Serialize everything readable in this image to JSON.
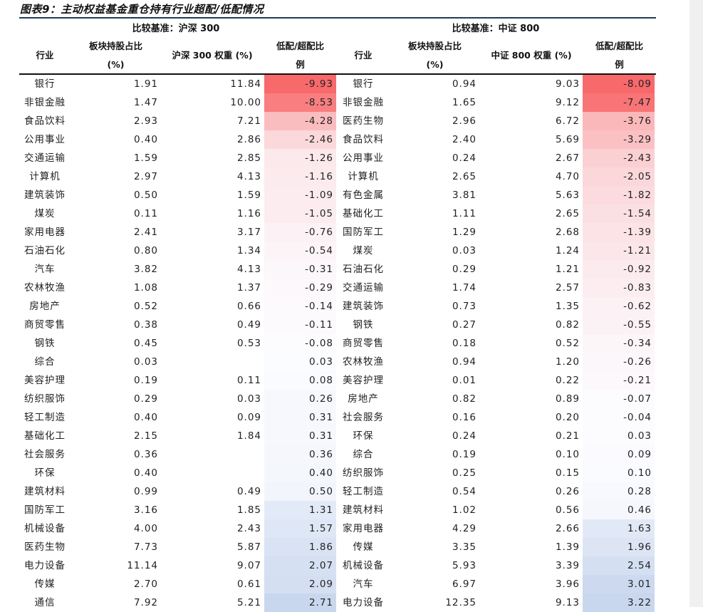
{
  "title": "图表9：主动权益基金重仓持有行业超配/低配情况",
  "left": {
    "benchmark": "比较基准：沪深 300",
    "headers": {
      "industry": "行业",
      "holding_l1": "板块持股占比",
      "holding_l2": "(%)",
      "weight": "沪深 300 权重 (%)",
      "diff_l1": "低配/超配比",
      "diff_l2": "例"
    },
    "rows": [
      [
        "银行",
        "1.91",
        "11.84",
        "-9.93"
      ],
      [
        "非银金融",
        "1.47",
        "10.00",
        "-8.53"
      ],
      [
        "食品饮料",
        "2.93",
        "7.21",
        "-4.28"
      ],
      [
        "公用事业",
        "0.40",
        "2.86",
        "-2.46"
      ],
      [
        "交通运输",
        "1.59",
        "2.85",
        "-1.26"
      ],
      [
        "计算机",
        "2.97",
        "4.13",
        "-1.16"
      ],
      [
        "建筑装饰",
        "0.50",
        "1.59",
        "-1.09"
      ],
      [
        "煤炭",
        "0.11",
        "1.16",
        "-1.05"
      ],
      [
        "家用电器",
        "2.41",
        "3.17",
        "-0.76"
      ],
      [
        "石油石化",
        "0.80",
        "1.34",
        "-0.54"
      ],
      [
        "汽车",
        "3.82",
        "4.13",
        "-0.31"
      ],
      [
        "农林牧渔",
        "1.08",
        "1.37",
        "-0.29"
      ],
      [
        "房地产",
        "0.52",
        "0.66",
        "-0.14"
      ],
      [
        "商贸零售",
        "0.38",
        "0.49",
        "-0.11"
      ],
      [
        "钢铁",
        "0.45",
        "0.53",
        "-0.08"
      ],
      [
        "综合",
        "0.03",
        "",
        "0.03"
      ],
      [
        "美容护理",
        "0.19",
        "0.11",
        "0.08"
      ],
      [
        "纺织服饰",
        "0.29",
        "0.03",
        "0.26"
      ],
      [
        "轻工制造",
        "0.40",
        "0.09",
        "0.31"
      ],
      [
        "基础化工",
        "2.15",
        "1.84",
        "0.31"
      ],
      [
        "社会服务",
        "0.36",
        "",
        "0.36"
      ],
      [
        "环保",
        "0.40",
        "",
        "0.40"
      ],
      [
        "建筑材料",
        "0.99",
        "0.49",
        "0.50"
      ],
      [
        "国防军工",
        "3.16",
        "1.85",
        "1.31"
      ],
      [
        "机械设备",
        "4.00",
        "2.43",
        "1.57"
      ],
      [
        "医药生物",
        "7.73",
        "5.87",
        "1.86"
      ],
      [
        "电力设备",
        "11.14",
        "9.07",
        "2.07"
      ],
      [
        "传媒",
        "2.70",
        "0.61",
        "2.09"
      ],
      [
        "通信",
        "7.92",
        "5.21",
        "2.71"
      ]
    ]
  },
  "right": {
    "benchmark": "比较基准：中证 800",
    "headers": {
      "industry": "行业",
      "holding_l1": "板块持股占比",
      "holding_l2": "(%)",
      "weight": "中证 800 权重 (%)",
      "diff_l1": "低配/超配比",
      "diff_l2": "例"
    },
    "rows": [
      [
        "银行",
        "0.94",
        "9.03",
        "-8.09"
      ],
      [
        "非银金融",
        "1.65",
        "9.12",
        "-7.47"
      ],
      [
        "医药生物",
        "2.96",
        "6.72",
        "-3.76"
      ],
      [
        "食品饮料",
        "2.40",
        "5.69",
        "-3.29"
      ],
      [
        "公用事业",
        "0.24",
        "2.67",
        "-2.43"
      ],
      [
        "计算机",
        "2.65",
        "4.70",
        "-2.05"
      ],
      [
        "有色金属",
        "3.81",
        "5.63",
        "-1.82"
      ],
      [
        "基础化工",
        "1.11",
        "2.65",
        "-1.54"
      ],
      [
        "国防军工",
        "1.29",
        "2.68",
        "-1.39"
      ],
      [
        "煤炭",
        "0.03",
        "1.24",
        "-1.21"
      ],
      [
        "石油石化",
        "0.29",
        "1.21",
        "-0.92"
      ],
      [
        "交通运输",
        "1.74",
        "2.57",
        "-0.83"
      ],
      [
        "建筑装饰",
        "0.73",
        "1.35",
        "-0.62"
      ],
      [
        "钢铁",
        "0.27",
        "0.82",
        "-0.55"
      ],
      [
        "商贸零售",
        "0.18",
        "0.52",
        "-0.34"
      ],
      [
        "农林牧渔",
        "0.94",
        "1.20",
        "-0.26"
      ],
      [
        "美容护理",
        "0.01",
        "0.22",
        "-0.21"
      ],
      [
        "房地产",
        "0.82",
        "0.89",
        "-0.07"
      ],
      [
        "社会服务",
        "0.16",
        "0.20",
        "-0.04"
      ],
      [
        "环保",
        "0.24",
        "0.21",
        "0.03"
      ],
      [
        "综合",
        "0.19",
        "0.10",
        "0.09"
      ],
      [
        "纺织服饰",
        "0.25",
        "0.15",
        "0.10"
      ],
      [
        "轻工制造",
        "0.54",
        "0.26",
        "0.28"
      ],
      [
        "建筑材料",
        "1.02",
        "0.56",
        "0.46"
      ],
      [
        "家用电器",
        "4.29",
        "2.66",
        "1.63"
      ],
      [
        "传媒",
        "3.35",
        "1.39",
        "1.96"
      ],
      [
        "机械设备",
        "5.93",
        "3.39",
        "2.54"
      ],
      [
        "汽车",
        "6.97",
        "3.96",
        "3.01"
      ],
      [
        "电力设备",
        "12.35",
        "9.13",
        "3.22"
      ]
    ]
  },
  "colors": {
    "negative": "#F8696B",
    "positive": "#C9D7EE",
    "neutral": "#FCFCFF",
    "rule": "#1F3A5A"
  }
}
